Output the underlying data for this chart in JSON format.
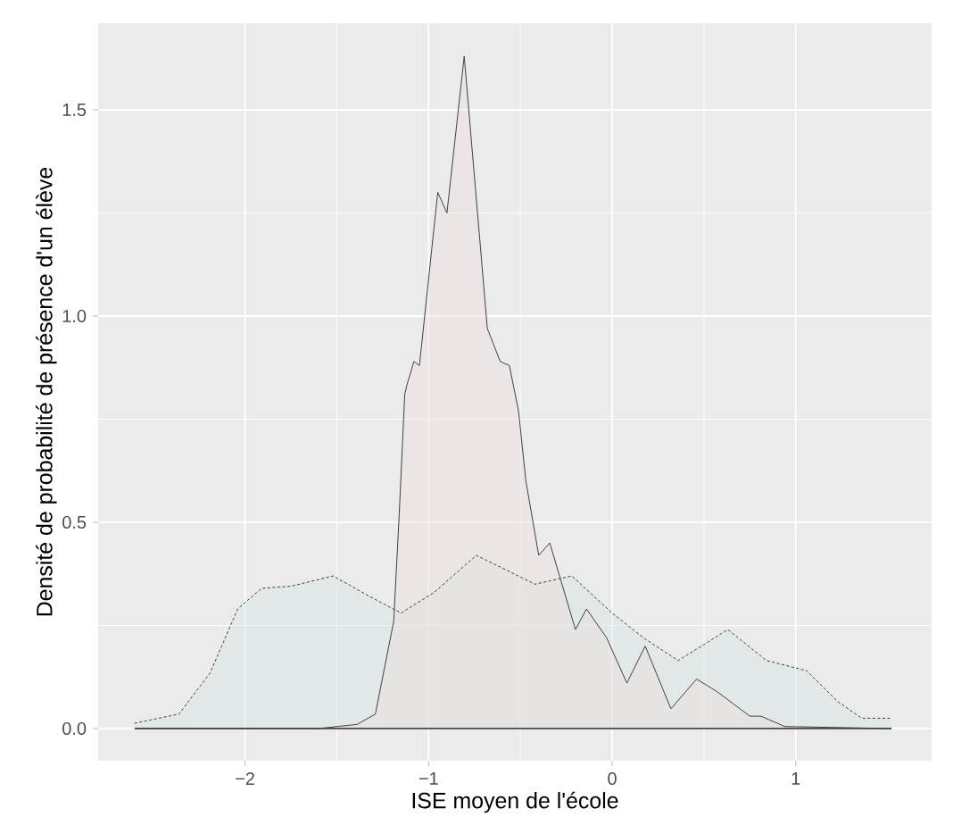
{
  "chart_data": {
    "type": "area",
    "xlabel": "ISE moyen de l'école",
    "ylabel": "Densité de probabilité de présence d'un élève",
    "xlim": [
      -2.8,
      1.74
    ],
    "ylim": [
      -0.078,
      1.71
    ],
    "xticks": [
      {
        "value": -2,
        "label": "−2"
      },
      {
        "value": -1,
        "label": "−1"
      },
      0,
      1
    ],
    "yticks": [
      {
        "value": 0,
        "label": "0.0"
      },
      {
        "value": 0.5,
        "label": "0.5"
      },
      {
        "value": 1,
        "label": "1.0"
      },
      {
        "value": 1.5,
        "label": "1.5"
      }
    ],
    "grid": true,
    "series": [
      {
        "color": "#d8e4e5",
        "line_style": "dotted",
        "x": [
          -2.6,
          -2.36,
          -2.19,
          -2.04,
          -1.91,
          -1.75,
          -1.52,
          -1.32,
          -1.15,
          -0.97,
          -0.74,
          -0.42,
          -0.22,
          0.0,
          0.17,
          0.36,
          0.63,
          0.84,
          1.06,
          1.23,
          1.36,
          1.52
        ],
        "values": [
          0.013,
          0.035,
          0.135,
          0.29,
          0.34,
          0.345,
          0.37,
          0.32,
          0.28,
          0.33,
          0.42,
          0.35,
          0.37,
          0.28,
          0.22,
          0.165,
          0.24,
          0.165,
          0.14,
          0.065,
          0.025,
          0.025
        ]
      },
      {
        "color": "#ecdedd",
        "line_style": "solid",
        "x": [
          -2.6,
          -1.6,
          -1.39,
          -1.29,
          -1.19,
          -1.16,
          -1.13,
          -1.12,
          -1.08,
          -1.05,
          -0.95,
          -0.9,
          -0.806,
          -0.68,
          -0.61,
          -0.56,
          -0.51,
          -0.47,
          -0.4,
          -0.34,
          -0.2,
          -0.14,
          -0.03,
          0.08,
          0.18,
          0.32,
          0.46,
          0.57,
          0.75,
          0.81,
          0.94,
          1.52
        ],
        "values": [
          0,
          0,
          0.01,
          0.035,
          0.26,
          0.52,
          0.81,
          0.83,
          0.89,
          0.88,
          1.3,
          1.25,
          1.63,
          0.97,
          0.89,
          0.88,
          0.77,
          0.6,
          0.42,
          0.45,
          0.24,
          0.29,
          0.22,
          0.11,
          0.2,
          0.048,
          0.12,
          0.09,
          0.03,
          0.03,
          0.005,
          0
        ]
      }
    ]
  }
}
